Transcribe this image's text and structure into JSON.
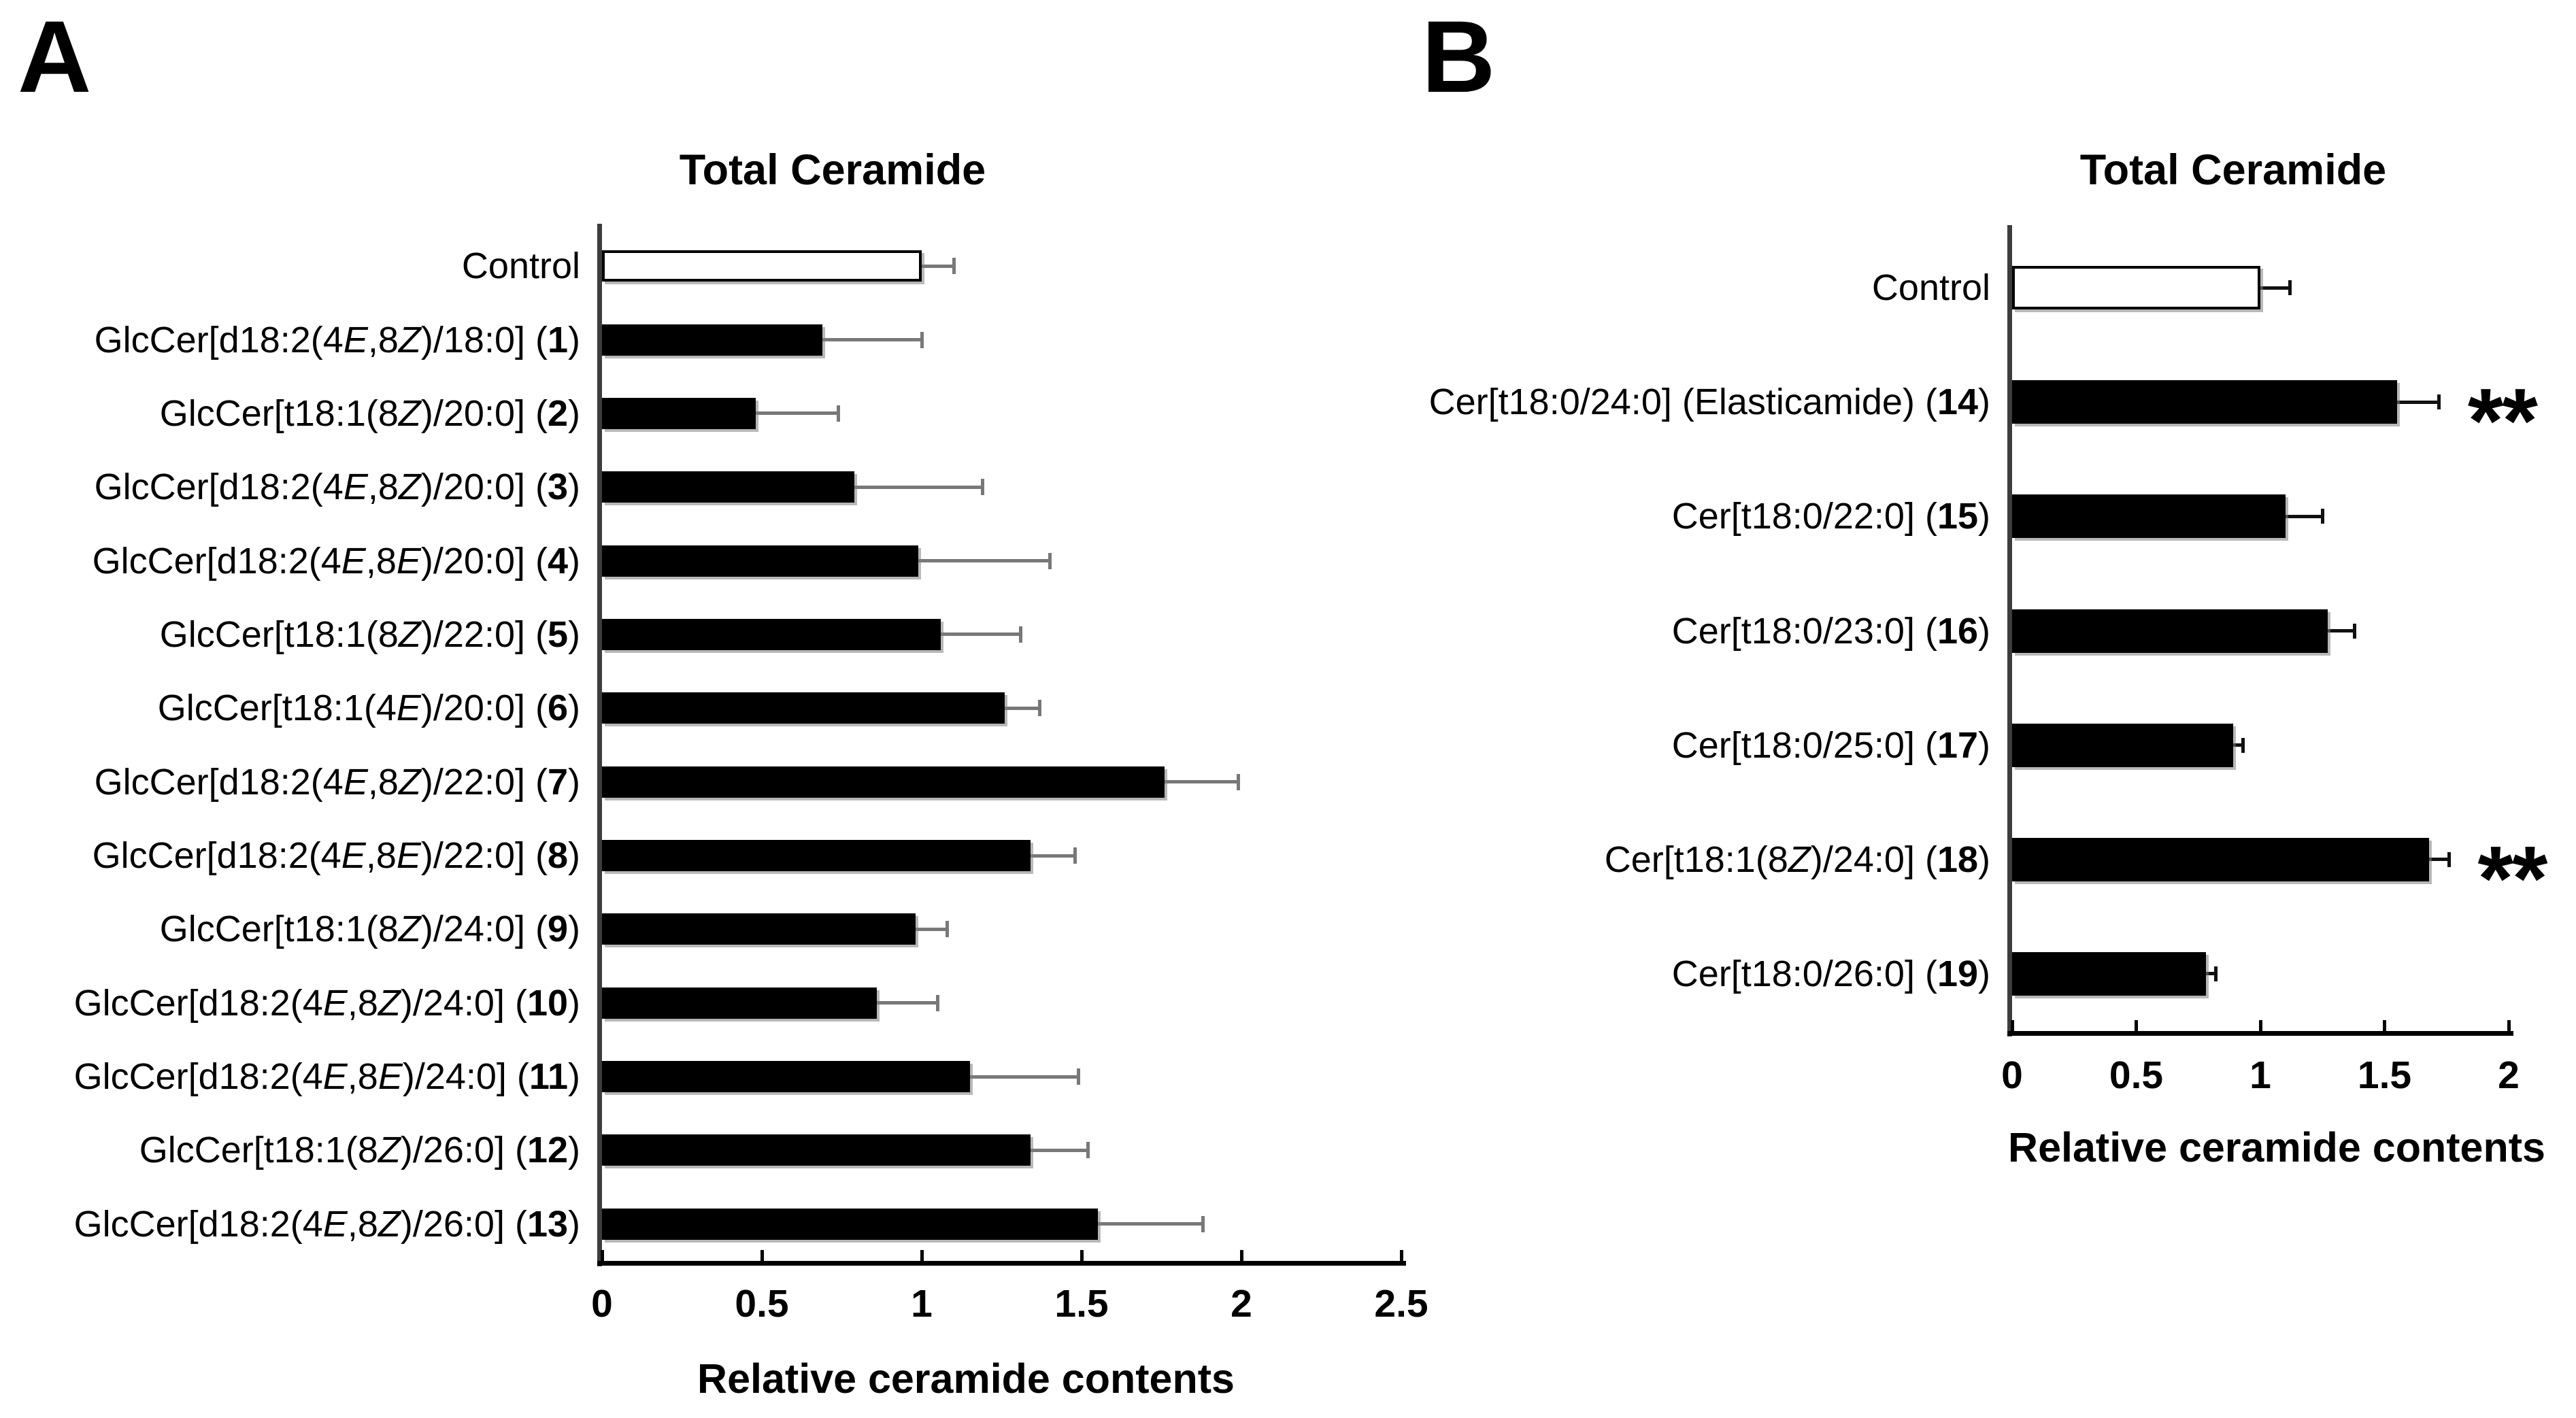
{
  "figure": {
    "background_color": "#ffffff",
    "bar_color": "#000000",
    "control_bar_color": "#ffffff",
    "panel_a_error_bar_color": "#787878",
    "panel_b_error_bar_color": "#111111"
  },
  "chart_data": [
    {
      "panel": "A",
      "type": "bar",
      "orientation": "horizontal",
      "title": "Total Ceramide",
      "xlabel": "Relative ceramide contents",
      "xlim": [
        0,
        2.5
      ],
      "xticks": [
        0,
        0.5,
        1,
        1.5,
        2,
        2.5
      ],
      "grid": false,
      "legend": "none",
      "rows": [
        {
          "label": "Control",
          "value": 1.0,
          "error": 0.1,
          "fill": "white",
          "significance": ""
        },
        {
          "label": "GlcCer[d18:2(4E,8Z)/18:0] (1)",
          "value": 0.69,
          "error": 0.31,
          "fill": "black",
          "significance": ""
        },
        {
          "label": "GlcCer[t18:1(8Z)/20:0] (2)",
          "value": 0.48,
          "error": 0.26,
          "fill": "black",
          "significance": ""
        },
        {
          "label": "GlcCer[d18:2(4E,8Z)/20:0] (3)",
          "value": 0.79,
          "error": 0.4,
          "fill": "black",
          "significance": ""
        },
        {
          "label": "GlcCer[d18:2(4E,8E)/20:0] (4)",
          "value": 0.99,
          "error": 0.41,
          "fill": "black",
          "significance": ""
        },
        {
          "label": "GlcCer[t18:1(8Z)/22:0] (5)",
          "value": 1.06,
          "error": 0.25,
          "fill": "black",
          "significance": ""
        },
        {
          "label": "GlcCer[t18:1(4E)/20:0] (6)",
          "value": 1.26,
          "error": 0.11,
          "fill": "black",
          "significance": ""
        },
        {
          "label": "GlcCer[d18:2(4E,8Z)/22:0] (7)",
          "value": 1.76,
          "error": 0.23,
          "fill": "black",
          "significance": ""
        },
        {
          "label": "GlcCer[d18:2(4E,8E)/22:0] (8)",
          "value": 1.34,
          "error": 0.14,
          "fill": "black",
          "significance": ""
        },
        {
          "label": "GlcCer[t18:1(8Z)/24:0] (9)",
          "value": 0.98,
          "error": 0.1,
          "fill": "black",
          "significance": ""
        },
        {
          "label": "GlcCer[d18:2(4E,8Z)/24:0] (10)",
          "value": 0.86,
          "error": 0.19,
          "fill": "black",
          "significance": ""
        },
        {
          "label": "GlcCer[d18:2(4E,8E)/24:0] (11)",
          "value": 1.15,
          "error": 0.34,
          "fill": "black",
          "significance": ""
        },
        {
          "label": "GlcCer[t18:1(8Z)/26:0] (12)",
          "value": 1.34,
          "error": 0.18,
          "fill": "black",
          "significance": ""
        },
        {
          "label": "GlcCer[d18:2(4E,8Z)/26:0] (13)",
          "value": 1.55,
          "error": 0.33,
          "fill": "black",
          "significance": ""
        }
      ]
    },
    {
      "panel": "B",
      "type": "bar",
      "orientation": "horizontal",
      "title": "Total Ceramide",
      "xlabel": "Relative ceramide contents",
      "xlim": [
        0,
        2
      ],
      "xticks": [
        0,
        0.5,
        1,
        1.5,
        2
      ],
      "grid": false,
      "legend": "none",
      "rows": [
        {
          "label": "Control",
          "value": 1.0,
          "error": 0.12,
          "fill": "white",
          "significance": ""
        },
        {
          "label": "Cer[t18:0/24:0] (Elasticamide) (14)",
          "value": 1.55,
          "error": 0.17,
          "fill": "black",
          "significance": "**"
        },
        {
          "label": "Cer[t18:0/22:0] (15)",
          "value": 1.1,
          "error": 0.15,
          "fill": "black",
          "significance": ""
        },
        {
          "label": "Cer[t18:0/23:0] (16)",
          "value": 1.27,
          "error": 0.11,
          "fill": "black",
          "significance": ""
        },
        {
          "label": "Cer[t18:0/25:0] (17)",
          "value": 0.89,
          "error": 0.04,
          "fill": "black",
          "significance": ""
        },
        {
          "label": "Cer[t18:1(8Z)/24:0] (18)",
          "value": 1.68,
          "error": 0.08,
          "fill": "black",
          "significance": "**"
        },
        {
          "label": "Cer[t18:0/26:0] (19)",
          "value": 0.78,
          "error": 0.04,
          "fill": "black",
          "significance": ""
        }
      ]
    }
  ]
}
